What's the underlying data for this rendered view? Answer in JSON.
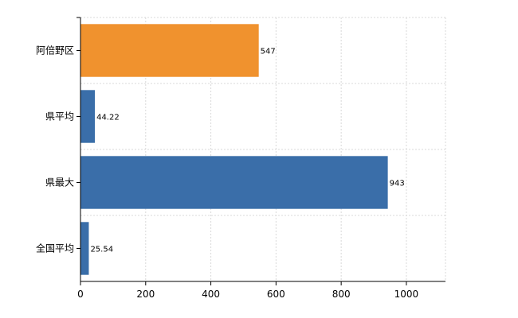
{
  "chart_data": {
    "type": "bar",
    "orientation": "horizontal",
    "categories": [
      "阿倍野区",
      "県平均",
      "県最大",
      "全国平均"
    ],
    "values": [
      547,
      44.22,
      943,
      25.54
    ],
    "value_labels": [
      "547",
      "44.22",
      "943",
      "25.54"
    ],
    "bar_colors": [
      "#f0922e",
      "#3a6ea9",
      "#3a6ea9",
      "#3a6ea9"
    ],
    "xlim": [
      0,
      1120
    ],
    "xticks": [
      0,
      200,
      400,
      600,
      800,
      1000
    ],
    "grid": true,
    "title": "",
    "xlabel": "",
    "ylabel": ""
  }
}
